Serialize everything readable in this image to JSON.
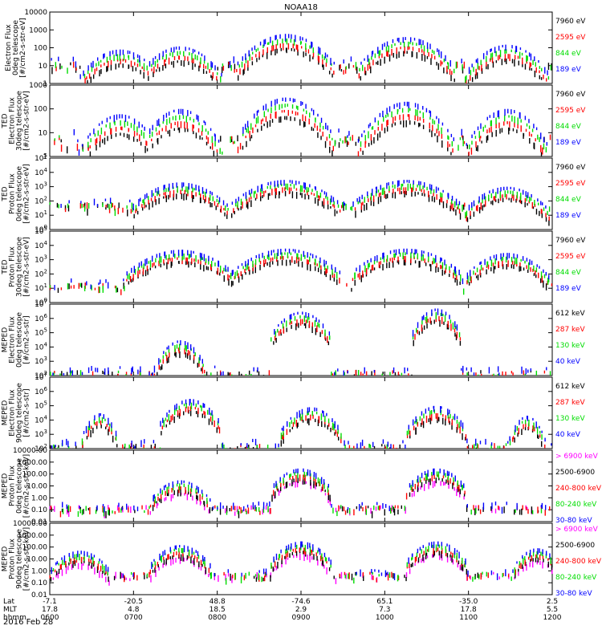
{
  "figure": {
    "title": "NOAA18",
    "date_label": "2016 Feb 28",
    "row_labels": [
      "Lat",
      "MLT",
      "hhmm"
    ]
  },
  "time_axis": {
    "hhmm": [
      "0600",
      "0700",
      "0800",
      "0900",
      "1000",
      "1100",
      "1200"
    ],
    "lat": [
      "-7.1",
      "-20.5",
      "48.8",
      "-74.6",
      "65.1",
      "-35.0",
      "2.5"
    ],
    "mlt": [
      "17.8",
      "4.8",
      "18.5",
      "2.9",
      "7.3",
      "17.8",
      "5.5"
    ]
  },
  "colors": {
    "black": "#000000",
    "red": "#ff0000",
    "green": "#00dd00",
    "blue": "#0000ff",
    "magenta": "#ff00ff"
  },
  "chart_data": [
    {
      "type": "scatter",
      "id": "p1",
      "ylabel": [
        "Electron Flux",
        "0deg telescope",
        "[#/cm2-s-str-eV]"
      ],
      "scale": "log",
      "ylim": [
        1,
        10000
      ],
      "tick_labels": [
        "1",
        "10",
        "100",
        "1000",
        "10000"
      ],
      "legend": [
        {
          "label": "7960 eV",
          "color": "#000000"
        },
        {
          "label": "2595 eV",
          "color": "#ff0000"
        },
        {
          "label": "844 eV",
          "color": "#00dd00"
        },
        {
          "label": "189 eV",
          "color": "#0000ff"
        }
      ],
      "events": [
        {
          "t": 0.14,
          "w": 0.07,
          "peak": 80,
          "bg": 20
        },
        {
          "t": 0.26,
          "w": 0.07,
          "peak": 120,
          "bg": 20
        },
        {
          "t": 0.47,
          "w": 0.08,
          "peak": 600,
          "bg": 40
        },
        {
          "t": 0.71,
          "w": 0.08,
          "peak": 400,
          "bg": 40
        },
        {
          "t": 0.91,
          "w": 0.07,
          "peak": 150,
          "bg": 30
        }
      ]
    },
    {
      "type": "scatter",
      "id": "p2",
      "ylabel": [
        "TED",
        "Electron Flux",
        "30deg telescope",
        "[#/cm2-s-str-eV]"
      ],
      "scale": "log",
      "ylim": [
        1,
        1000
      ],
      "tick_labels": [
        "1",
        "10",
        "100",
        "1000"
      ],
      "legend": [
        {
          "label": "7960 eV",
          "color": "#000000"
        },
        {
          "label": "2595 eV",
          "color": "#ff0000"
        },
        {
          "label": "844 eV",
          "color": "#00dd00"
        },
        {
          "label": "189 eV",
          "color": "#0000ff"
        }
      ],
      "events": [
        {
          "t": 0.14,
          "w": 0.07,
          "peak": 60,
          "bg": 10
        },
        {
          "t": 0.26,
          "w": 0.07,
          "peak": 100,
          "bg": 10
        },
        {
          "t": 0.47,
          "w": 0.08,
          "peak": 300,
          "bg": 20
        },
        {
          "t": 0.71,
          "w": 0.08,
          "peak": 200,
          "bg": 20
        },
        {
          "t": 0.91,
          "w": 0.07,
          "peak": 100,
          "bg": 10
        }
      ]
    },
    {
      "type": "scatter",
      "id": "p3",
      "ylabel": [
        "TED",
        "Proton Flux",
        "0deg telescope",
        "[#/cm2-s-str-eV]"
      ],
      "scale": "log",
      "ylim": [
        1,
        100000
      ],
      "tick_labels": [
        "10^0",
        "10^1",
        "10^2",
        "10^3",
        "10^4",
        "10^5"
      ],
      "legend": [
        {
          "label": "7960 eV",
          "color": "#000000"
        },
        {
          "label": "2595 eV",
          "color": "#ff0000"
        },
        {
          "label": "844 eV",
          "color": "#00dd00"
        },
        {
          "label": "189 eV",
          "color": "#0000ff"
        }
      ],
      "events": [
        {
          "t": 0.26,
          "w": 0.08,
          "peak": 2000,
          "bg": 100
        },
        {
          "t": 0.47,
          "w": 0.09,
          "peak": 3000,
          "bg": 100
        },
        {
          "t": 0.71,
          "w": 0.09,
          "peak": 3000,
          "bg": 100
        },
        {
          "t": 0.91,
          "w": 0.07,
          "peak": 1000,
          "bg": 100
        }
      ]
    },
    {
      "type": "scatter",
      "id": "p4",
      "ylabel": [
        "TED",
        "Proton Flux",
        "30deg telescope",
        "[#/cm2-s-str-eV]"
      ],
      "scale": "log",
      "ylim": [
        1,
        100000
      ],
      "tick_labels": [
        "10^0",
        "10^1",
        "10^2",
        "10^3",
        "10^4",
        "10^5"
      ],
      "legend": [
        {
          "label": "7960 eV",
          "color": "#000000"
        },
        {
          "label": "2595 eV",
          "color": "#ff0000"
        },
        {
          "label": "844 eV",
          "color": "#00dd00"
        },
        {
          "label": "189 eV",
          "color": "#0000ff"
        }
      ],
      "events": [
        {
          "t": 0.26,
          "w": 0.09,
          "peak": 5000,
          "bg": 30
        },
        {
          "t": 0.47,
          "w": 0.09,
          "peak": 6000,
          "bg": 30
        },
        {
          "t": 0.71,
          "w": 0.09,
          "peak": 6000,
          "bg": 30
        },
        {
          "t": 0.91,
          "w": 0.07,
          "peak": 3000,
          "bg": 30
        }
      ]
    },
    {
      "type": "scatter",
      "id": "p5",
      "ylabel": [
        "MEPED",
        "Electron Flux",
        "0deg telescope",
        "[#/cm2-s-str]"
      ],
      "scale": "log",
      "ylim": [
        100,
        10000000
      ],
      "tick_labels": [
        "10^2",
        "10^3",
        "10^4",
        "10^5",
        "10^6",
        "10^7"
      ],
      "legend": [
        {
          "label": "612 keV",
          "color": "#000000"
        },
        {
          "label": "287 keV",
          "color": "#ff0000"
        },
        {
          "label": "130 keV",
          "color": "#00dd00"
        },
        {
          "label": "40 keV",
          "color": "#0000ff"
        }
      ],
      "events": [
        {
          "t": 0.26,
          "w": 0.04,
          "peak": 30000,
          "bg": 300
        },
        {
          "t": 0.5,
          "w": 0.05,
          "peak": 3000000,
          "bg": 300
        },
        {
          "t": 0.77,
          "w": 0.04,
          "peak": 5000000,
          "bg": 300
        }
      ]
    },
    {
      "type": "scatter",
      "id": "p6",
      "ylabel": [
        "MEPED",
        "Electron Flux",
        "90deg telescope",
        "[#/cm2-s-str]"
      ],
      "scale": "log",
      "ylim": [
        100,
        10000000
      ],
      "tick_labels": [
        "10^2",
        "10^3",
        "10^4",
        "10^5",
        "10^6",
        "10^7"
      ],
      "legend": [
        {
          "label": "612 keV",
          "color": "#000000"
        },
        {
          "label": "287 keV",
          "color": "#ff0000"
        },
        {
          "label": "130 keV",
          "color": "#00dd00"
        },
        {
          "label": "40 keV",
          "color": "#0000ff"
        }
      ],
      "events": [
        {
          "t": 0.1,
          "w": 0.03,
          "peak": 30000,
          "bg": 300
        },
        {
          "t": 0.28,
          "w": 0.05,
          "peak": 300000,
          "bg": 300
        },
        {
          "t": 0.52,
          "w": 0.05,
          "peak": 80000,
          "bg": 300
        },
        {
          "t": 0.77,
          "w": 0.05,
          "peak": 100000,
          "bg": 300
        },
        {
          "t": 0.95,
          "w": 0.03,
          "peak": 20000,
          "bg": 300
        }
      ]
    },
    {
      "type": "scatter",
      "id": "p7",
      "ylabel": [
        "MEPED",
        "Proton Flux",
        "0deg telescope",
        "[#/cm2-s-str-keV]"
      ],
      "scale": "log",
      "ylim": [
        0.01,
        10000
      ],
      "tick_labels": [
        "0.01",
        "0.10",
        "1.00",
        "10.00",
        "100.00",
        "1000.00",
        "10000.00"
      ],
      "legend": [
        {
          "label": "> 6900 keV",
          "color": "#ff00ff"
        },
        {
          "label": "2500-6900",
          "color": "#000000"
        },
        {
          "label": "240-800 keV",
          "color": "#ff0000"
        },
        {
          "label": "80-240 keV",
          "color": "#00dd00"
        },
        {
          "label": "30-80 keV",
          "color": "#0000ff"
        }
      ],
      "events": [
        {
          "t": 0.26,
          "w": 0.05,
          "peak": 30,
          "bg": 0.3
        },
        {
          "t": 0.5,
          "w": 0.05,
          "peak": 300,
          "bg": 0.3
        },
        {
          "t": 0.77,
          "w": 0.05,
          "peak": 300,
          "bg": 0.3
        }
      ]
    },
    {
      "type": "scatter",
      "id": "p8",
      "ylabel": [
        "MEPED",
        "Proton Flux",
        "90deg telescope",
        "[#/cm2-s-str-keV]"
      ],
      "scale": "log",
      "ylim": [
        0.01,
        10000
      ],
      "tick_labels": [
        "0.01",
        "0.10",
        "1.00",
        "10.00",
        "100.00",
        "1000.00",
        "10000.00"
      ],
      "legend": [
        {
          "label": "> 6900 keV",
          "color": "#ff00ff"
        },
        {
          "label": "2500-6900",
          "color": "#000000"
        },
        {
          "label": "240-800 keV",
          "color": "#ff0000"
        },
        {
          "label": "80-240 keV",
          "color": "#00dd00"
        },
        {
          "label": "30-80 keV",
          "color": "#0000ff"
        }
      ],
      "events": [
        {
          "t": 0.06,
          "w": 0.05,
          "peak": 50,
          "bg": 1
        },
        {
          "t": 0.26,
          "w": 0.05,
          "peak": 150,
          "bg": 1
        },
        {
          "t": 0.5,
          "w": 0.05,
          "peak": 300,
          "bg": 1
        },
        {
          "t": 0.77,
          "w": 0.05,
          "peak": 300,
          "bg": 1
        },
        {
          "t": 0.97,
          "w": 0.04,
          "peak": 80,
          "bg": 1
        }
      ]
    }
  ]
}
